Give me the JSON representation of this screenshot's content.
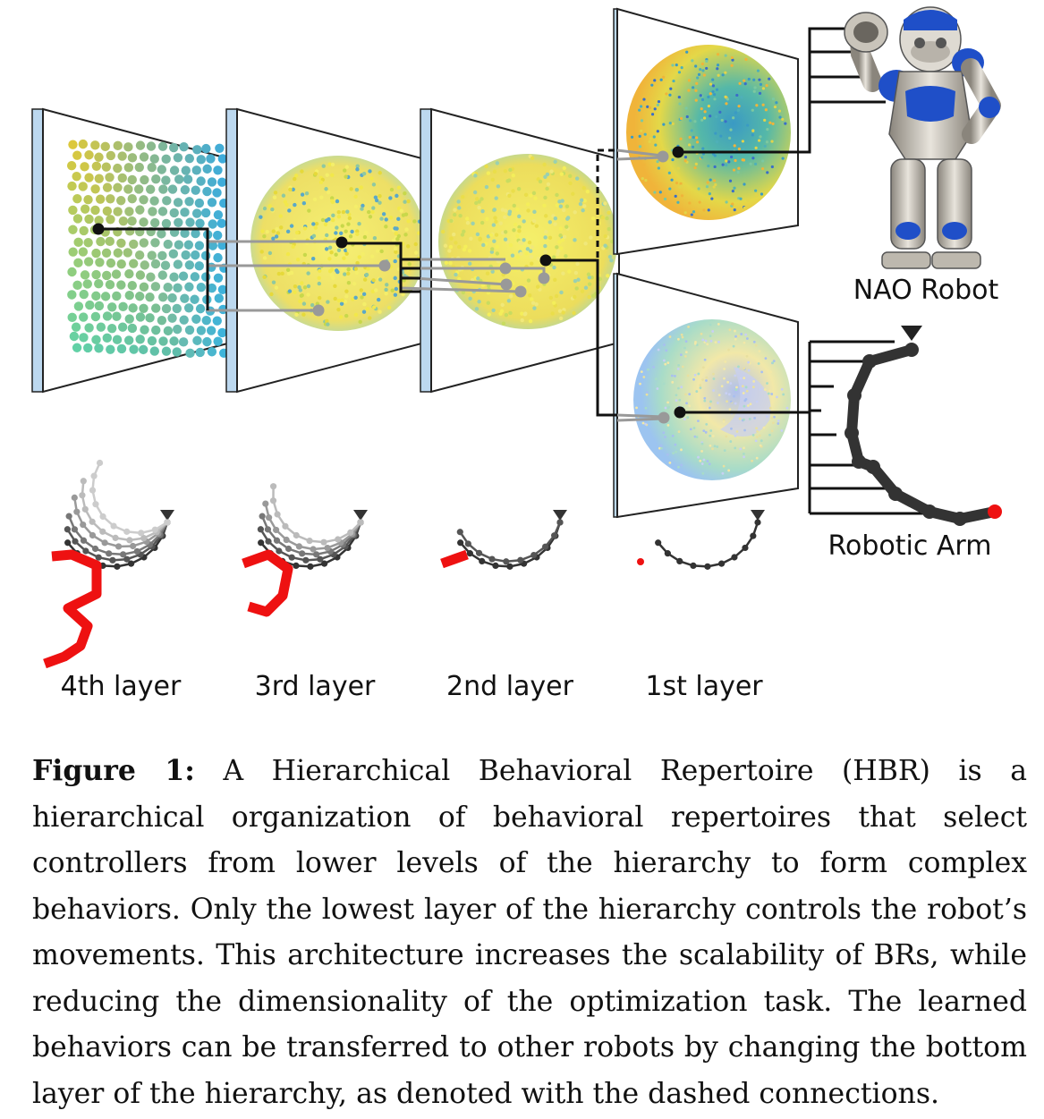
{
  "robot_labels": {
    "nao": "NAO Robot",
    "arm": "Robotic Arm"
  },
  "layer_labels": [
    "4th layer",
    "3rd layer",
    "2nd layer",
    "1st layer"
  ],
  "caption": {
    "label": "Figure 1:",
    "text": "A Hierarchical Behavioral Repertoire (HBR) is a hierarchical organization of behavioral repertoires that select controllers from lower levels of the hierarchy to form complex behaviors. Only the lowest layer of the hierarchy controls the robot’s movements. This architecture increases the scalability of BRs, while reducing the dimensionality of the optimization task. The learned behaviors can be transferred to other robots by changing the bottom layer of the hierarchy, as denoted with the dashed connections."
  },
  "colors": {
    "accent_red": "#ee1111",
    "panel_edge": "#bcd8ef",
    "line_black": "#111111",
    "line_gray": "#999999",
    "nao_blue": "#1f4fc8"
  },
  "icons": [
    "nao-robot-illustration",
    "robotic-arm-icon",
    "arm-base-triangle-icon"
  ]
}
